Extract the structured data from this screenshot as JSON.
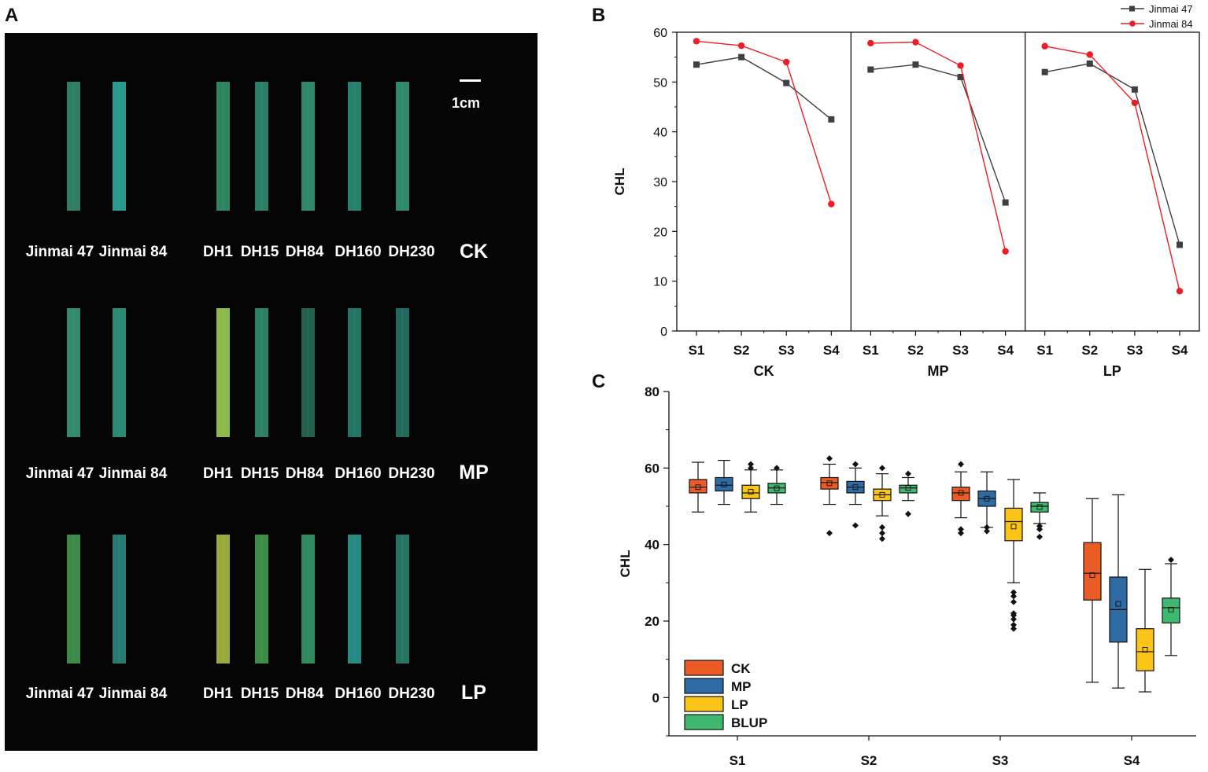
{
  "panel_labels": {
    "a": "A",
    "b": "B",
    "c": "C"
  },
  "photo": {
    "scale_label": "1cm",
    "rows": [
      {
        "treatment": "CK",
        "genotypes": [
          "Jinmai 47",
          "Jinmai 84",
          "DH1",
          "DH15",
          "DH84",
          "DH160",
          "DH230"
        ],
        "leaf_colors": [
          "#2e7e63",
          "#2a9a8e",
          "#2e8560",
          "#2c7e69",
          "#2e8869",
          "#27806e",
          "#2f8a6c"
        ]
      },
      {
        "treatment": "MP",
        "genotypes": [
          "Jinmai 47",
          "Jinmai 84",
          "DH1",
          "DH15",
          "DH84",
          "DH160",
          "DH230"
        ],
        "leaf_colors": [
          "#348a6a",
          "#2a8a74",
          "#8fb84a",
          "#2e8062",
          "#24604e",
          "#247466",
          "#236a5e"
        ]
      },
      {
        "treatment": "LP",
        "genotypes": [
          "Jinmai 47",
          "Jinmai 84",
          "DH1",
          "DH15",
          "DH84",
          "DH160",
          "DH230"
        ],
        "leaf_colors": [
          "#3e8a4a",
          "#2a7a74",
          "#9aa83e",
          "#3f8c48",
          "#2f8a60",
          "#298a84",
          "#267464"
        ]
      }
    ]
  },
  "chart_data": [
    {
      "type": "line",
      "panel": "B",
      "ylabel": "CHL",
      "ylim": [
        0,
        60
      ],
      "yticks": [
        0,
        10,
        20,
        30,
        40,
        50,
        60
      ],
      "categories": [
        "S1",
        "S2",
        "S3",
        "S4"
      ],
      "facets": [
        "CK",
        "MP",
        "LP"
      ],
      "series": [
        {
          "name": "Jinmai 47",
          "color": "#404040",
          "marker": "square",
          "values": {
            "CK": [
              53.5,
              55.0,
              49.8,
              42.5
            ],
            "MP": [
              52.5,
              53.5,
              51.0,
              25.8
            ],
            "LP": [
              52.0,
              53.7,
              48.5,
              17.3
            ]
          }
        },
        {
          "name": "Jinmai 84",
          "color": "#ee1c25",
          "marker": "circle",
          "values": {
            "CK": [
              58.2,
              57.3,
              54.0,
              25.5
            ],
            "MP": [
              57.8,
              58.0,
              53.3,
              16.0
            ],
            "LP": [
              57.2,
              55.5,
              45.8,
              8.0
            ]
          }
        }
      ]
    },
    {
      "type": "box",
      "panel": "C",
      "ylabel": "CHL",
      "ylim": [
        -10,
        80
      ],
      "yticks": [
        0,
        20,
        40,
        60,
        80
      ],
      "categories": [
        "S1",
        "S2",
        "S3",
        "S4"
      ],
      "legend": [
        "CK",
        "MP",
        "LP",
        "BLUP"
      ],
      "colors": {
        "CK": "#ea5b26",
        "MP": "#2e6aa3",
        "LP": "#fbc419",
        "BLUP": "#3db86e"
      },
      "groups": [
        {
          "stage": "S1",
          "boxes": [
            {
              "series": "CK",
              "whisker_low": 48.5,
              "q1": 53.5,
              "median": 55.0,
              "q3": 57.0,
              "whisker_high": 61.5,
              "mean": 55.0,
              "outliers": []
            },
            {
              "series": "MP",
              "whisker_low": 50.5,
              "q1": 54.0,
              "median": 55.5,
              "q3": 57.5,
              "whisker_high": 62.0,
              "mean": 55.7,
              "outliers": []
            },
            {
              "series": "LP",
              "whisker_low": 48.5,
              "q1": 52.0,
              "median": 53.5,
              "q3": 55.5,
              "whisker_high": 59.5,
              "mean": 53.8,
              "outliers": [
                60.0,
                61.0
              ]
            },
            {
              "series": "BLUP",
              "whisker_low": 50.5,
              "q1": 53.5,
              "median": 54.8,
              "q3": 56.0,
              "whisker_high": 59.5,
              "mean": 54.7,
              "outliers": [
                60.0
              ]
            }
          ]
        },
        {
          "stage": "S2",
          "boxes": [
            {
              "series": "CK",
              "whisker_low": 50.5,
              "q1": 54.5,
              "median": 56.2,
              "q3": 57.5,
              "whisker_high": 61.0,
              "mean": 56.0,
              "outliers": [
                43.0,
                62.5
              ]
            },
            {
              "series": "MP",
              "whisker_low": 50.5,
              "q1": 53.5,
              "median": 55.0,
              "q3": 56.5,
              "whisker_high": 60.0,
              "mean": 55.0,
              "outliers": [
                45.0,
                61.0
              ]
            },
            {
              "series": "LP",
              "whisker_low": 47.5,
              "q1": 51.5,
              "median": 53.0,
              "q3": 54.5,
              "whisker_high": 58.5,
              "mean": 53.0,
              "outliers": [
                41.5,
                43.0,
                44.5,
                60.0
              ]
            },
            {
              "series": "BLUP",
              "whisker_low": 51.5,
              "q1": 53.5,
              "median": 54.8,
              "q3": 55.5,
              "whisker_high": 57.5,
              "mean": 54.8,
              "outliers": [
                48.0,
                58.5
              ]
            }
          ]
        },
        {
          "stage": "S3",
          "boxes": [
            {
              "series": "CK",
              "whisker_low": 47.0,
              "q1": 51.5,
              "median": 53.5,
              "q3": 55.0,
              "whisker_high": 59.0,
              "mean": 53.5,
              "outliers": [
                43.0,
                44.0,
                61.0
              ]
            },
            {
              "series": "MP",
              "whisker_low": 44.5,
              "q1": 50.0,
              "median": 52.0,
              "q3": 54.0,
              "whisker_high": 59.0,
              "mean": 52.0,
              "outliers": [
                43.5,
                44.5
              ]
            },
            {
              "series": "LP",
              "whisker_low": 30.0,
              "q1": 41.0,
              "median": 46.0,
              "q3": 49.5,
              "whisker_high": 57.0,
              "mean": 44.7,
              "outliers": [
                18.0,
                19.0,
                20.5,
                21.5,
                22.0,
                25.0,
                26.5,
                27.5
              ]
            },
            {
              "series": "BLUP",
              "whisker_low": 45.5,
              "q1": 48.5,
              "median": 50.0,
              "q3": 51.0,
              "whisker_high": 53.5,
              "mean": 49.8,
              "outliers": [
                42.0,
                44.0,
                44.8
              ]
            }
          ]
        },
        {
          "stage": "S4",
          "boxes": [
            {
              "series": "CK",
              "whisker_low": 4.0,
              "q1": 25.5,
              "median": 32.5,
              "q3": 40.5,
              "whisker_high": 52.0,
              "mean": 32.0,
              "outliers": []
            },
            {
              "series": "MP",
              "whisker_low": 2.5,
              "q1": 14.5,
              "median": 23.0,
              "q3": 31.5,
              "whisker_high": 53.0,
              "mean": 24.5,
              "outliers": []
            },
            {
              "series": "LP",
              "whisker_low": 1.5,
              "q1": 7.0,
              "median": 12.0,
              "q3": 18.0,
              "whisker_high": 33.5,
              "mean": 12.5,
              "outliers": []
            },
            {
              "series": "BLUP",
              "whisker_low": 11.0,
              "q1": 19.5,
              "median": 23.5,
              "q3": 26.0,
              "whisker_high": 35.0,
              "mean": 23.0,
              "outliers": [
                36.0
              ]
            }
          ]
        }
      ]
    }
  ]
}
